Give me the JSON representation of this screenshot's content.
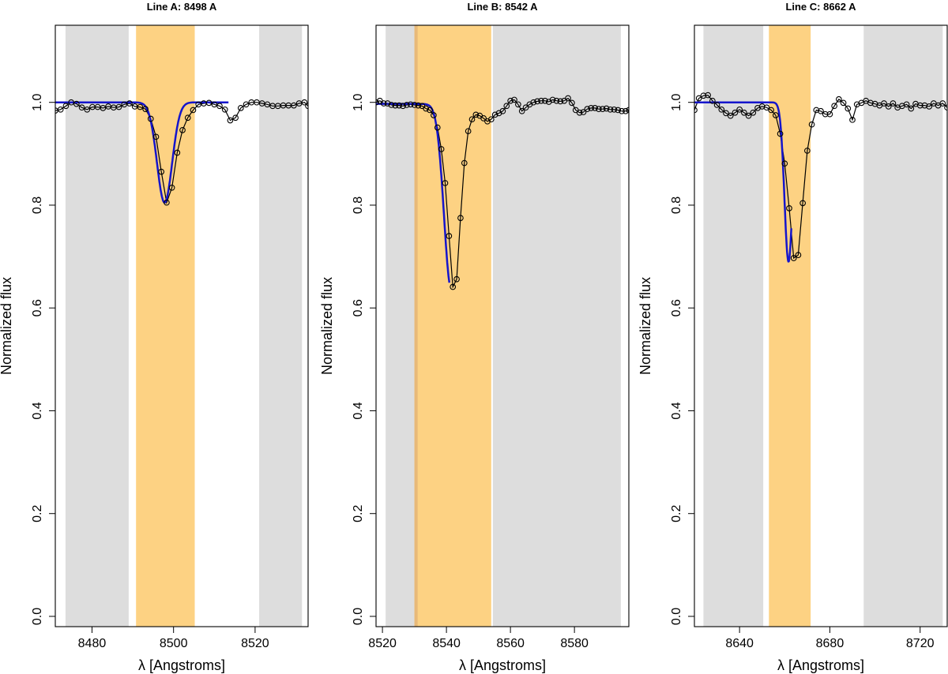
{
  "colors": {
    "continuum_band": "#dddddd",
    "line_band": "#fdd283",
    "overlap_band": "#e8b978",
    "fit_line": "#1515cc",
    "data_line": "#000000"
  },
  "chart_data": [
    {
      "type": "line",
      "title": "Line A: 8498 A",
      "xlabel": "λ [Angstroms]",
      "ylabel": "Normalized flux",
      "xlim": [
        8471,
        8533
      ],
      "ylim": [
        -0.02,
        1.15
      ],
      "xticks": [
        8480,
        8500,
        8520
      ],
      "xtick_labels": [
        "8480",
        "8500",
        "8520"
      ],
      "yticks": [
        0.0,
        0.2,
        0.4,
        0.6,
        0.8,
        1.0
      ],
      "ytick_labels": [
        "0.0",
        "0.2",
        "0.4",
        "0.6",
        "0.8",
        "1.0"
      ],
      "grid": false,
      "continuum_regions": [
        [
          8473.5,
          8489.0
        ],
        [
          8521.0,
          8531.5
        ]
      ],
      "line_region": [
        8490.8,
        8505.2
      ],
      "series": [
        {
          "role": "observed",
          "style": "line+open-circles",
          "x": [
            8471,
            8472.3,
            8473.6,
            8474.9,
            8476.2,
            8477.5,
            8478.8,
            8480.1,
            8481.4,
            8482.7,
            8484.0,
            8485.3,
            8486.6,
            8487.9,
            8489.2,
            8490.5,
            8491.8,
            8493.1,
            8494.4,
            8495.7,
            8497.0,
            8498.3,
            8499.6,
            8500.9,
            8502.2,
            8503.5,
            8504.8,
            8506.1,
            8507.4,
            8508.7,
            8510.0,
            8511.3,
            8512.6,
            8513.9,
            8515.2,
            8516.5,
            8517.8,
            8519.1,
            8520.4,
            8521.7,
            8523.0,
            8524.3,
            8525.6,
            8526.9,
            8528.2,
            8529.5,
            8530.8,
            8532.1,
            8533
          ],
          "y": [
            0.984,
            0.986,
            0.993,
            1.0,
            0.997,
            0.99,
            0.986,
            0.991,
            0.991,
            0.989,
            0.992,
            0.99,
            0.991,
            0.996,
            0.998,
            0.992,
            0.991,
            0.987,
            0.968,
            0.933,
            0.865,
            0.805,
            0.834,
            0.902,
            0.946,
            0.97,
            0.985,
            0.996,
            0.998,
            0.999,
            0.996,
            0.993,
            0.986,
            0.965,
            0.97,
            0.989,
            0.996,
            1.0,
            1.0,
            0.998,
            0.996,
            0.993,
            0.993,
            0.994,
            0.994,
            0.994,
            0.998,
            1.0,
            0.993
          ]
        },
        {
          "role": "fit",
          "style": "line",
          "profile": "gaussian",
          "center": 8497.8,
          "depth": 0.195,
          "sigma": 1.85,
          "continuum": 1.0,
          "x_range": [
            8471,
            8513.5
          ]
        }
      ]
    },
    {
      "type": "line",
      "title": "Line B: 8542 A",
      "xlabel": "λ [Angstroms]",
      "ylabel": "Normalized flux",
      "xlim": [
        8518,
        8597
      ],
      "ylim": [
        -0.02,
        1.15
      ],
      "xticks": [
        8520,
        8540,
        8560,
        8580
      ],
      "xtick_labels": [
        "8520",
        "8540",
        "8560",
        "8580"
      ],
      "yticks": [
        0.0,
        0.2,
        0.4,
        0.6,
        0.8,
        1.0
      ],
      "ytick_labels": [
        "0.0",
        "0.2",
        "0.4",
        "0.6",
        "0.8",
        "1.0"
      ],
      "grid": false,
      "continuum_regions": [
        [
          8521.0,
          8531.0
        ],
        [
          8554.5,
          8594.5
        ]
      ],
      "line_region": [
        8530.0,
        8554.0
      ],
      "series": [
        {
          "role": "observed",
          "style": "line+open-circles",
          "x": [
            8518,
            8519.2,
            8520.4,
            8521.6,
            8522.8,
            8524.0,
            8525.2,
            8526.4,
            8527.6,
            8528.8,
            8530.0,
            8531.2,
            8532.4,
            8533.6,
            8534.8,
            8536.0,
            8537.2,
            8538.4,
            8539.6,
            8540.8,
            8542.0,
            8543.2,
            8544.4,
            8545.6,
            8546.8,
            8548.0,
            8549.2,
            8550.4,
            8551.6,
            8552.8,
            8554.0,
            8555.2,
            8556.4,
            8557.6,
            8558.8,
            8560.0,
            8561.2,
            8562.4,
            8563.6,
            8564.8,
            8566.0,
            8567.2,
            8568.4,
            8569.6,
            8570.8,
            8572.0,
            8573.2,
            8574.4,
            8575.6,
            8576.8,
            8578.0,
            8579.2,
            8580.4,
            8581.6,
            8582.8,
            8584.0,
            8585.2,
            8586.4,
            8587.6,
            8588.8,
            8590.0,
            8591.2,
            8592.4,
            8593.6,
            8594.8,
            8596.0,
            8597
          ],
          "y": [
            1.0,
            1.003,
            0.998,
            0.998,
            0.995,
            0.994,
            0.994,
            0.993,
            0.995,
            0.996,
            0.995,
            0.994,
            0.993,
            0.988,
            0.985,
            0.975,
            0.951,
            0.909,
            0.843,
            0.74,
            0.641,
            0.656,
            0.775,
            0.882,
            0.944,
            0.967,
            0.976,
            0.974,
            0.969,
            0.963,
            0.967,
            0.976,
            0.979,
            0.983,
            0.993,
            1.003,
            1.005,
            0.996,
            0.983,
            0.99,
            0.996,
            1.0,
            1.002,
            1.003,
            1.003,
            1.001,
            1.005,
            1.003,
            1.002,
            1.003,
            1.008,
            0.999,
            0.985,
            0.98,
            0.981,
            0.987,
            0.989,
            0.989,
            0.987,
            0.987,
            0.988,
            0.986,
            0.986,
            0.985,
            0.983,
            0.983,
            0.985
          ]
        },
        {
          "role": "fit",
          "style": "line",
          "profile": "gaussian",
          "center": 8541.5,
          "depth": 0.36,
          "sigma": 2.25,
          "continuum": 0.997,
          "x_range": [
            8518,
            8541.0
          ]
        }
      ]
    },
    {
      "type": "line",
      "title": "Line C: 8662 A",
      "xlabel": "λ [Angstroms]",
      "ylabel": "Normalized flux",
      "xlim": [
        8620,
        8732
      ],
      "ylim": [
        -0.02,
        1.15
      ],
      "xticks": [
        8640,
        8680,
        8720
      ],
      "xtick_labels": [
        "8640",
        "8680",
        "8720"
      ],
      "yticks": [
        0.0,
        0.2,
        0.4,
        0.6,
        0.8,
        1.0
      ],
      "ytick_labels": [
        "0.0",
        "0.2",
        "0.4",
        "0.6",
        "0.8",
        "1.0"
      ],
      "grid": false,
      "continuum_regions": [
        [
          8624.0,
          8650.5
        ],
        [
          8695.0,
          8730.0
        ]
      ],
      "line_region": [
        8653.0,
        8671.5
      ],
      "series": [
        {
          "role": "observed",
          "style": "line+open-circles",
          "x": [
            8620,
            8622.0,
            8624.0,
            8626.0,
            8628.0,
            8630.0,
            8632.0,
            8634.0,
            8636.0,
            8638.0,
            8640.0,
            8642.0,
            8644.0,
            8646.0,
            8648.0,
            8650.0,
            8652.0,
            8654.0,
            8656.0,
            8658.0,
            8660.0,
            8662.0,
            8664.0,
            8666.0,
            8668.0,
            8670.0,
            8672.0,
            8674.0,
            8676.0,
            8678.0,
            8680.0,
            8682.0,
            8684.0,
            8686.0,
            8688.0,
            8690.0,
            8692.0,
            8694.0,
            8696.0,
            8698.0,
            8700.0,
            8702.0,
            8704.0,
            8706.0,
            8708.0,
            8710.0,
            8712.0,
            8714.0,
            8716.0,
            8718.0,
            8720.0,
            8722.0,
            8724.0,
            8726.0,
            8728.0,
            8730.0,
            8732
          ],
          "y": [
            0.985,
            1.008,
            1.013,
            1.014,
            1.003,
            0.995,
            0.986,
            0.979,
            0.974,
            0.98,
            0.986,
            0.98,
            0.974,
            0.98,
            0.989,
            0.992,
            0.99,
            0.985,
            0.975,
            0.939,
            0.881,
            0.794,
            0.697,
            0.703,
            0.804,
            0.906,
            0.957,
            0.985,
            0.983,
            0.977,
            0.977,
            0.993,
            1.006,
            0.999,
            0.988,
            0.966,
            0.996,
            0.999,
            1.003,
            0.999,
            0.997,
            0.994,
            0.998,
            0.992,
            0.998,
            0.99,
            0.993,
            0.996,
            0.988,
            0.997,
            0.994,
            0.994,
            0.992,
            0.998,
            0.994,
            0.998,
            0.99
          ]
        },
        {
          "role": "fit",
          "style": "line",
          "profile": "gaussian",
          "center": 8661.7,
          "depth": 0.31,
          "sigma": 1.8,
          "continuum": 1.0,
          "x_range": [
            8620,
            8663.0
          ]
        }
      ]
    }
  ]
}
